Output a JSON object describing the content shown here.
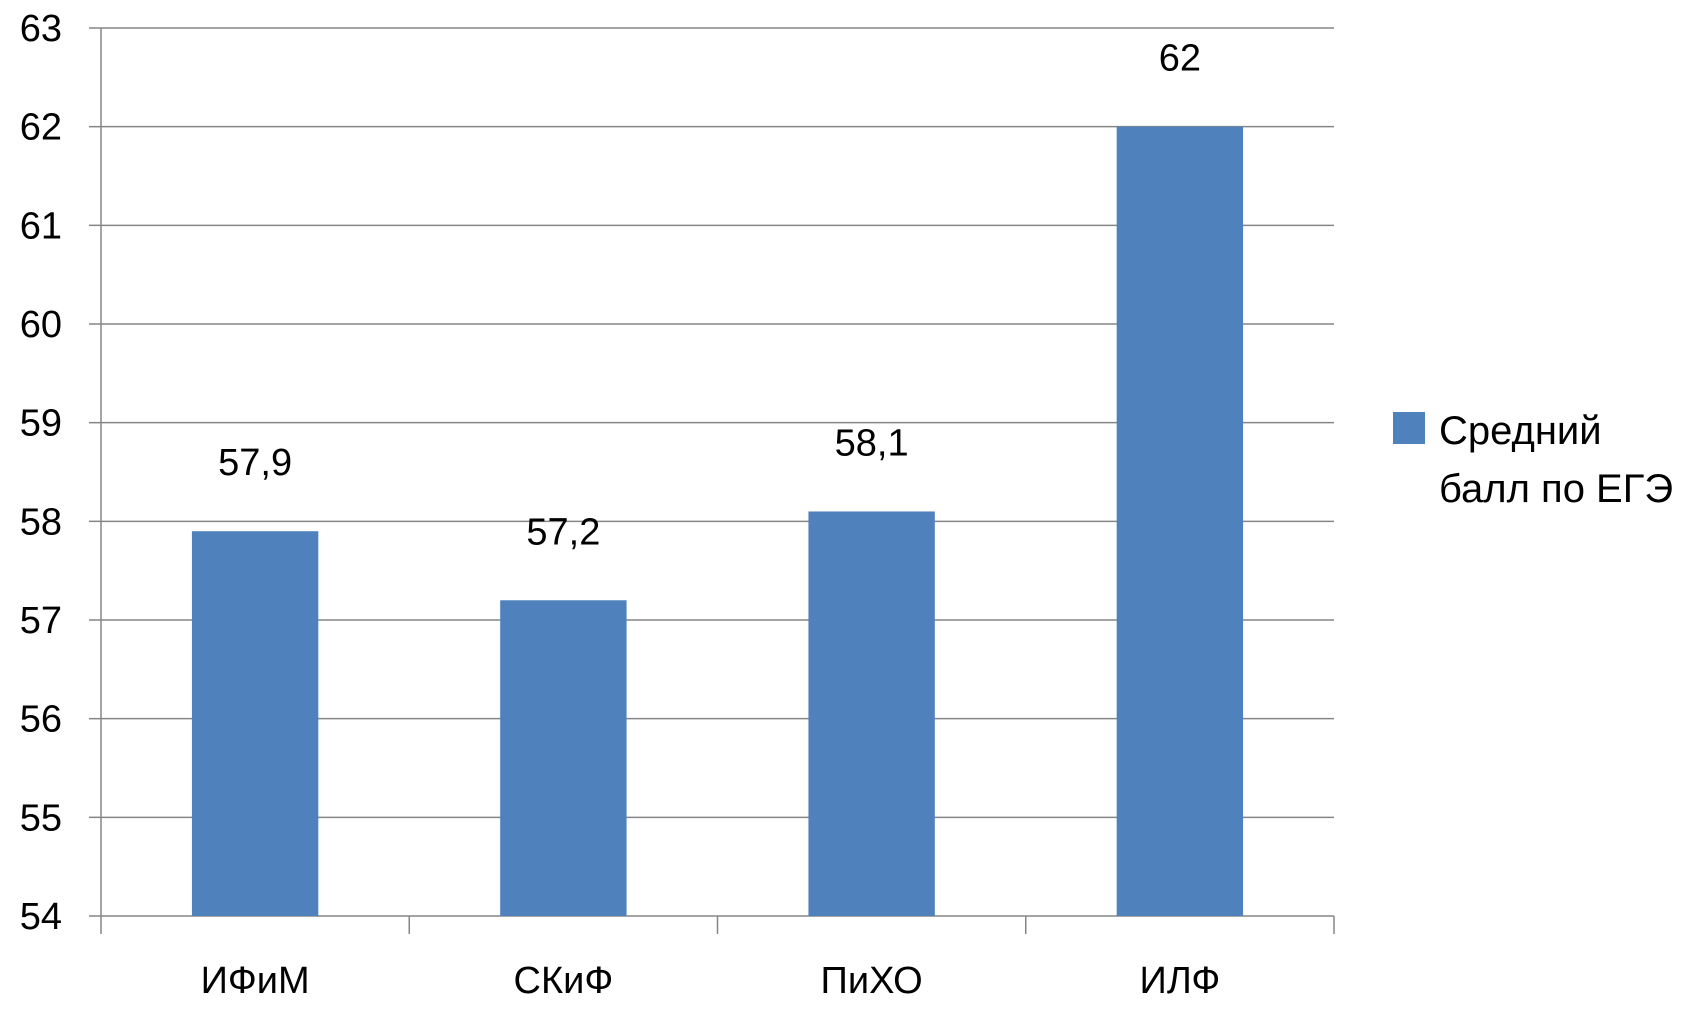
{
  "chart_data": {
    "type": "bar",
    "categories": [
      "ИФиМ",
      "СКиФ",
      "ПиХО",
      "ИЛФ"
    ],
    "series": [
      {
        "name": "Средний балл по ЕГЭ",
        "values": [
          57.9,
          57.2,
          58.1,
          62
        ]
      }
    ],
    "value_labels": [
      "57,9",
      "57,2",
      "58,1",
      "62"
    ],
    "yticks": [
      "54",
      "55",
      "56",
      "57",
      "58",
      "59",
      "60",
      "61",
      "62",
      "63"
    ],
    "ylim": [
      54,
      63
    ],
    "grid": true,
    "legend": "right",
    "colors": {
      "bar": "#4F81BD",
      "grid": "#868686"
    }
  },
  "legend": {
    "label": "Средний балл по ЕГЭ"
  }
}
